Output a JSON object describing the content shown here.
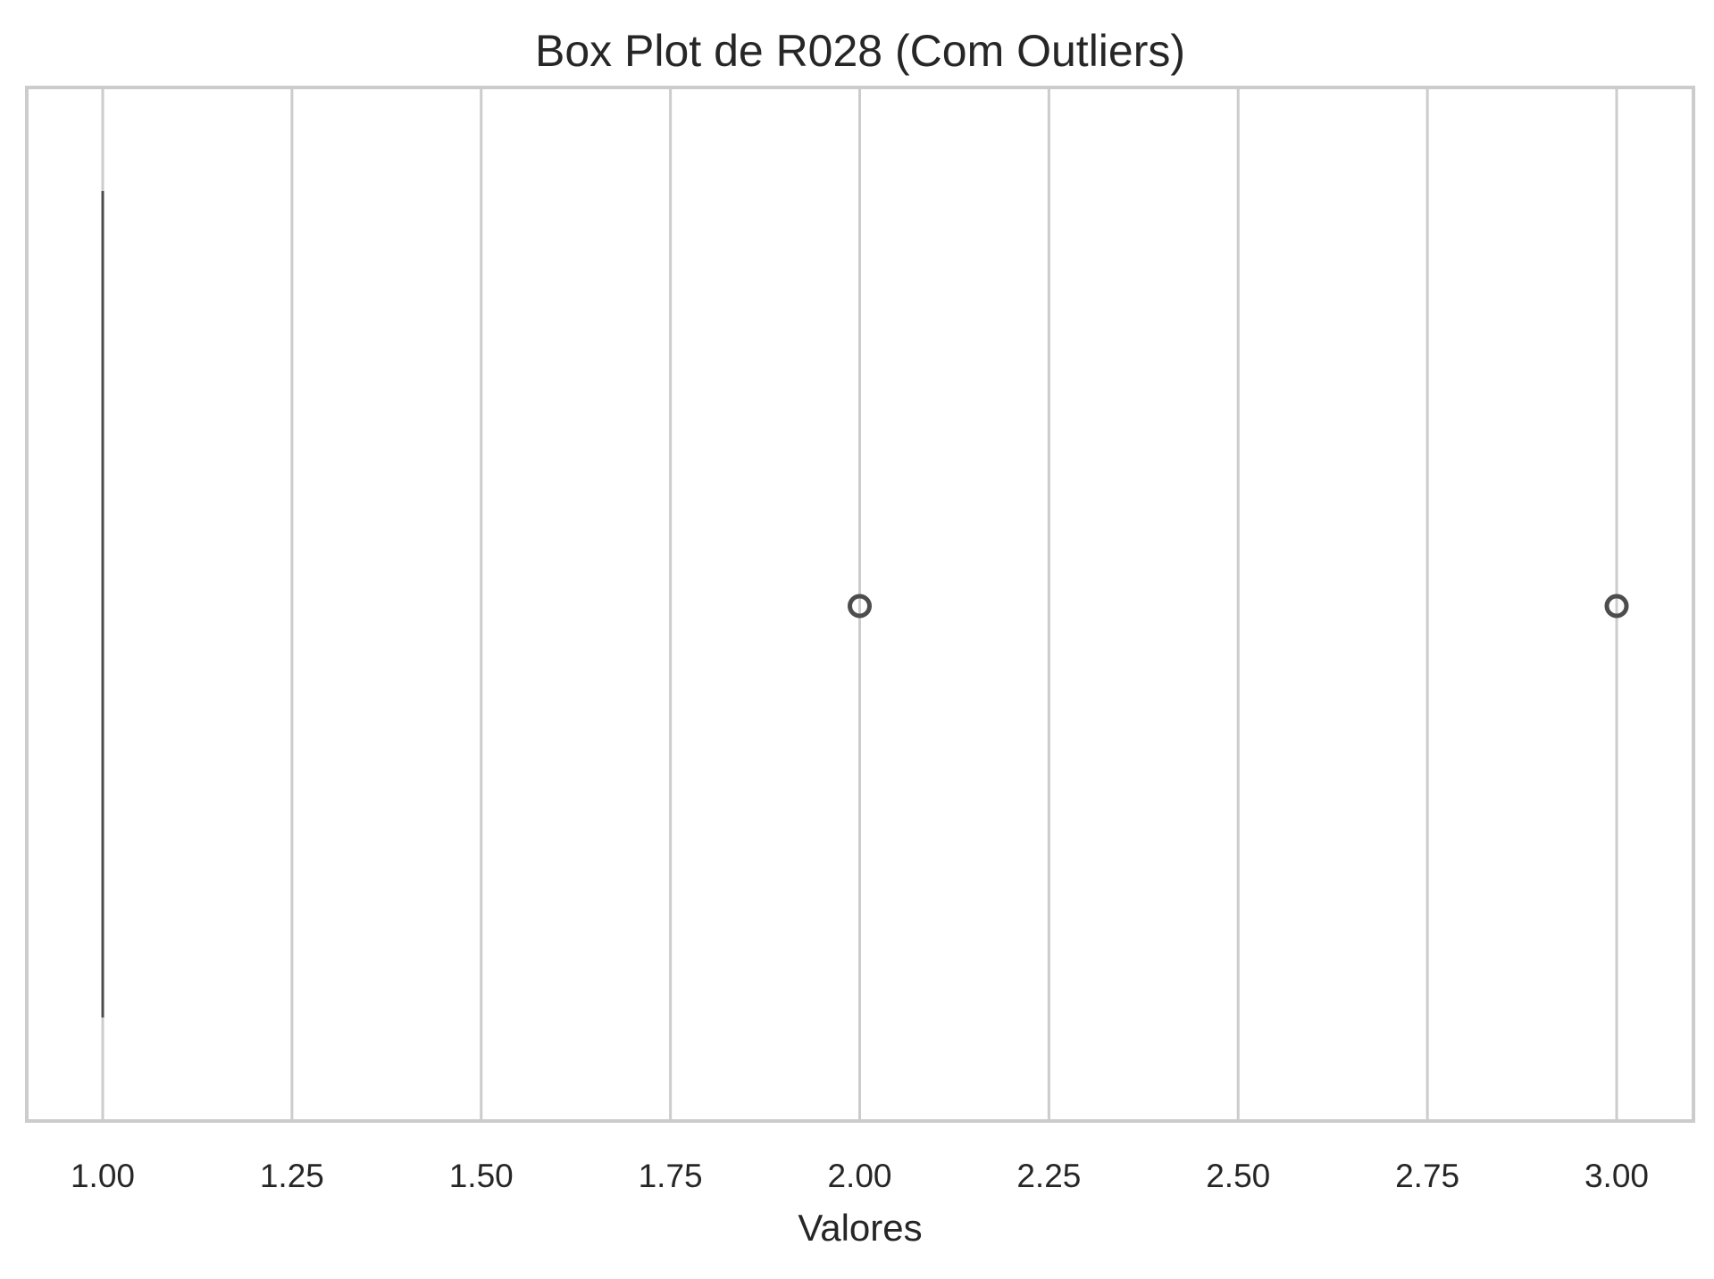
{
  "chart_data": {
    "type": "boxplot",
    "title": "Box Plot de R028 (Com Outliers)",
    "xlabel": "Valores",
    "ylabel": "",
    "orientation": "horizontal",
    "xlim": [
      0.9,
      3.1
    ],
    "x_ticks": [
      1.0,
      1.25,
      1.5,
      1.75,
      2.0,
      2.25,
      2.5,
      2.75,
      3.0
    ],
    "x_tick_labels": [
      "1.00",
      "1.25",
      "1.50",
      "1.75",
      "2.00",
      "2.25",
      "2.50",
      "2.75",
      "3.00"
    ],
    "grid": "vertical",
    "box": {
      "min": 1.0,
      "q1": 1.0,
      "median": 1.0,
      "q3": 1.0,
      "max": 1.0
    },
    "outliers": [
      2.0,
      3.0
    ],
    "colors": {
      "frame": "#cccccc",
      "grid": "#cccccc",
      "box_line": "#4d4d4d",
      "outlier": "#4d4d4d",
      "text": "#262626",
      "background": "#ffffff"
    }
  }
}
